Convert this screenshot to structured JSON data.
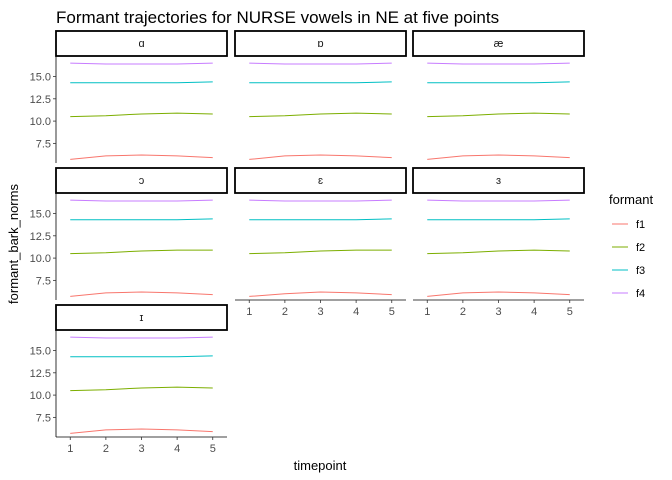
{
  "chart_data": {
    "type": "line",
    "title": "Formant trajectories for NURSE vowels in NE at five points",
    "xlabel": "timepoint",
    "ylabel": "formant_bark_norms",
    "x": [
      1,
      2,
      3,
      4,
      5
    ],
    "x_ticks": [
      "1",
      "2",
      "3",
      "4",
      "5"
    ],
    "y_ticks": [
      "7.5",
      "10.0",
      "12.5",
      "15.0"
    ],
    "y_tick_values": [
      7.5,
      10.0,
      12.5,
      15.0
    ],
    "ylim": [
      5.3,
      17.3
    ],
    "xlim": [
      0.6,
      5.4
    ],
    "grid": false,
    "legend": {
      "title": "formant",
      "position": "right",
      "entries": [
        {
          "label": "f1",
          "color": "#F8766D"
        },
        {
          "label": "f2",
          "color": "#7CAE00"
        },
        {
          "label": "f3",
          "color": "#00BFC4"
        },
        {
          "label": "f4",
          "color": "#C77CFF"
        }
      ]
    },
    "panels": [
      {
        "label": "ɑ",
        "series": [
          {
            "name": "f1",
            "values": [
              5.7,
              6.1,
              6.2,
              6.1,
              5.9
            ]
          },
          {
            "name": "f2",
            "values": [
              10.5,
              10.6,
              10.8,
              10.9,
              10.8
            ]
          },
          {
            "name": "f3",
            "values": [
              14.3,
              14.3,
              14.3,
              14.3,
              14.4
            ]
          },
          {
            "name": "f4",
            "values": [
              16.5,
              16.4,
              16.4,
              16.4,
              16.5
            ]
          }
        ]
      },
      {
        "label": "ɒ",
        "series": [
          {
            "name": "f1",
            "values": [
              5.7,
              6.1,
              6.2,
              6.1,
              5.9
            ]
          },
          {
            "name": "f2",
            "values": [
              10.5,
              10.6,
              10.8,
              10.9,
              10.8
            ]
          },
          {
            "name": "f3",
            "values": [
              14.3,
              14.3,
              14.3,
              14.3,
              14.4
            ]
          },
          {
            "name": "f4",
            "values": [
              16.5,
              16.4,
              16.4,
              16.4,
              16.5
            ]
          }
        ]
      },
      {
        "label": "æ",
        "series": [
          {
            "name": "f1",
            "values": [
              5.7,
              6.1,
              6.2,
              6.1,
              5.9
            ]
          },
          {
            "name": "f2",
            "values": [
              10.5,
              10.6,
              10.8,
              10.9,
              10.8
            ]
          },
          {
            "name": "f3",
            "values": [
              14.3,
              14.3,
              14.3,
              14.3,
              14.4
            ]
          },
          {
            "name": "f4",
            "values": [
              16.5,
              16.4,
              16.4,
              16.4,
              16.5
            ]
          }
        ]
      },
      {
        "label": "ɔ",
        "series": [
          {
            "name": "f1",
            "values": [
              5.7,
              6.1,
              6.2,
              6.1,
              5.9
            ]
          },
          {
            "name": "f2",
            "values": [
              10.5,
              10.6,
              10.8,
              10.9,
              10.9
            ]
          },
          {
            "name": "f3",
            "values": [
              14.3,
              14.3,
              14.3,
              14.3,
              14.4
            ]
          },
          {
            "name": "f4",
            "values": [
              16.5,
              16.4,
              16.4,
              16.4,
              16.5
            ]
          }
        ]
      },
      {
        "label": "ɛ",
        "series": [
          {
            "name": "f1",
            "values": [
              5.7,
              6.0,
              6.2,
              6.1,
              5.9
            ]
          },
          {
            "name": "f2",
            "values": [
              10.5,
              10.6,
              10.8,
              10.9,
              10.9
            ]
          },
          {
            "name": "f3",
            "values": [
              14.3,
              14.3,
              14.3,
              14.3,
              14.4
            ]
          },
          {
            "name": "f4",
            "values": [
              16.5,
              16.4,
              16.4,
              16.4,
              16.5
            ]
          }
        ]
      },
      {
        "label": "ɜ",
        "series": [
          {
            "name": "f1",
            "values": [
              5.7,
              6.1,
              6.2,
              6.1,
              5.9
            ]
          },
          {
            "name": "f2",
            "values": [
              10.5,
              10.6,
              10.8,
              10.9,
              10.8
            ]
          },
          {
            "name": "f3",
            "values": [
              14.3,
              14.3,
              14.3,
              14.3,
              14.4
            ]
          },
          {
            "name": "f4",
            "values": [
              16.5,
              16.4,
              16.4,
              16.4,
              16.5
            ]
          }
        ]
      },
      {
        "label": "ɪ",
        "series": [
          {
            "name": "f1",
            "values": [
              5.7,
              6.1,
              6.2,
              6.1,
              5.9
            ]
          },
          {
            "name": "f2",
            "values": [
              10.5,
              10.6,
              10.8,
              10.9,
              10.8
            ]
          },
          {
            "name": "f3",
            "values": [
              14.3,
              14.3,
              14.3,
              14.3,
              14.4
            ]
          },
          {
            "name": "f4",
            "values": [
              16.5,
              16.4,
              16.4,
              16.4,
              16.5
            ]
          }
        ]
      }
    ]
  }
}
